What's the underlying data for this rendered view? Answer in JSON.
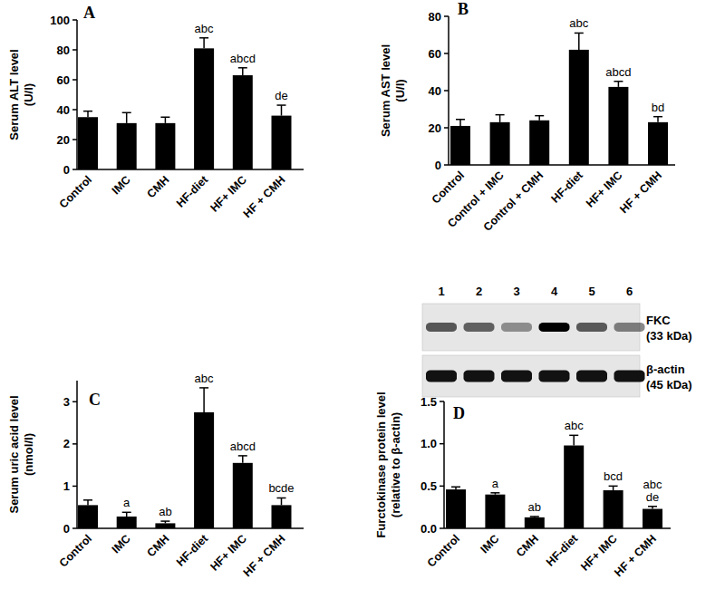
{
  "chart_data": [
    {
      "type": "bar",
      "title": "A",
      "y_label": "Serum ALT level\n(U/l)",
      "categories": [
        "Control",
        "IMC",
        "CMH",
        "HF-diet",
        "HF+ IMC",
        "HF + CMH"
      ],
      "values": [
        35,
        31,
        31,
        81,
        63,
        36
      ],
      "errors": [
        4,
        7,
        4,
        7,
        5,
        7
      ],
      "annotations": [
        null,
        null,
        null,
        "abc",
        "abcd",
        "de"
      ],
      "color": "#000000",
      "ylim": [
        0,
        100
      ],
      "yticks": [
        0,
        20,
        40,
        60,
        80,
        100
      ]
    },
    {
      "type": "bar",
      "title": "B",
      "y_label": "Serum AST level\n(U/l)",
      "categories": [
        "Control",
        "Control + IMC",
        "Control + CMH",
        "HF-diet",
        "HF+ IMC",
        "HF + CMH"
      ],
      "values": [
        21,
        23,
        24,
        62,
        42,
        23
      ],
      "errors": [
        3.5,
        4,
        2.5,
        9,
        3,
        3
      ],
      "annotations": [
        null,
        null,
        null,
        "abc",
        "abcd",
        "bd"
      ],
      "color": "#000000",
      "ylim": [
        0,
        80
      ],
      "yticks": [
        0,
        20,
        40,
        60,
        80
      ]
    },
    {
      "type": "bar",
      "title": "C",
      "y_label": "Serum uric acid level\n(nmol/l)",
      "categories": [
        "Control",
        "IMC",
        "CMH",
        "HF-diet",
        "HF+ IMC",
        "HF + CMH"
      ],
      "values": [
        0.55,
        0.28,
        0.12,
        2.75,
        1.55,
        0.55
      ],
      "errors": [
        0.12,
        0.1,
        0.05,
        0.58,
        0.17,
        0.17
      ],
      "annotations": [
        null,
        "a",
        "ab",
        "abc",
        "abcd",
        "bcde"
      ],
      "color": "#000000",
      "ylim": [
        0,
        3.5
      ],
      "yticks": [
        0,
        1,
        2,
        3
      ]
    },
    {
      "type": "bar",
      "title": "D",
      "y_label": "Furctokinase protein level\n(relative to β-actin)",
      "categories": [
        "Control",
        "IMC",
        "CMH",
        "HF-diet",
        "HF+ IMC",
        "HF + CMH"
      ],
      "values": [
        0.46,
        0.4,
        0.13,
        0.98,
        0.45,
        0.23
      ],
      "errors": [
        0.03,
        0.02,
        0.01,
        0.12,
        0.05,
        0.03
      ],
      "annotations": [
        null,
        "a",
        "ab",
        "abc",
        "bcd",
        "abc\nde"
      ],
      "color": "#000000",
      "ylim": [
        0,
        1.5
      ],
      "yticks": [
        {
          "value": 0,
          "label": "0.0"
        },
        {
          "value": 0.5,
          "label": "0.5"
        },
        {
          "value": 1,
          "label": "1.0"
        },
        {
          "value": 1.5,
          "label": "1.5"
        }
      ]
    }
  ],
  "blot": {
    "lanes": [
      1,
      2,
      3,
      4,
      5,
      6
    ],
    "rows": [
      {
        "name": "FKC",
        "size": "(33 kDa)"
      },
      {
        "name": "β-actin",
        "size": "(45 kDa)"
      }
    ]
  }
}
